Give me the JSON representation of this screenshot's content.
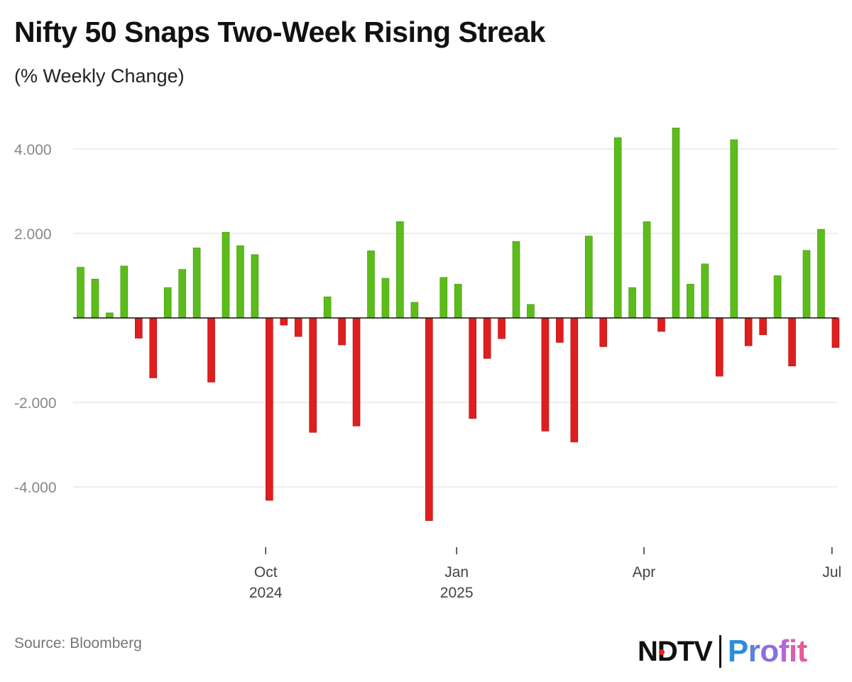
{
  "title": "Nifty 50 Snaps Two-Week Rising Streak",
  "subtitle": "(% Weekly Change)",
  "source": "Source: Bloomberg",
  "logo": {
    "ndtv": "NDTV",
    "profit": "Profit"
  },
  "colors": {
    "positive": "#5cbd1a",
    "negative": "#e01e1e",
    "grid": "#dddddd",
    "axis": "#111111",
    "tick_text": "#888888"
  },
  "chart_data": {
    "type": "bar",
    "ylim": [
      -5.2,
      4.9
    ],
    "yticks": [
      {
        "value": 4,
        "label": "4.000"
      },
      {
        "value": 2,
        "label": "2.000"
      },
      {
        "value": -2,
        "label": "-2.000"
      },
      {
        "value": -4,
        "label": "-4.000"
      }
    ],
    "grid": true,
    "legend": "none",
    "x_ticks": [
      {
        "position": 12.75,
        "label": "Oct",
        "sublabel": "2024"
      },
      {
        "position": 25.9,
        "label": "Jan",
        "sublabel": "2025"
      },
      {
        "position": 38.8,
        "label": "Apr",
        "sublabel": ""
      },
      {
        "position": 51.75,
        "label": "Jul",
        "sublabel": ""
      }
    ],
    "values": [
      1.2,
      0.92,
      0.12,
      1.23,
      -0.48,
      -1.42,
      0.72,
      1.15,
      1.66,
      -1.52,
      2.03,
      1.71,
      1.5,
      -4.32,
      -0.17,
      -0.44,
      -2.71,
      0.5,
      -0.64,
      -2.56,
      1.59,
      0.94,
      2.28,
      0.37,
      -4.8,
      0.96,
      0.8,
      -2.38,
      -0.96,
      -0.49,
      1.81,
      0.32,
      -2.68,
      -0.58,
      -2.94,
      1.94,
      -0.68,
      4.27,
      0.72,
      2.28,
      -0.32,
      4.5,
      0.8,
      1.28,
      -1.38,
      4.22,
      -0.66,
      -0.4,
      1.0,
      -1.14,
      1.6,
      2.1,
      -0.7
    ]
  }
}
